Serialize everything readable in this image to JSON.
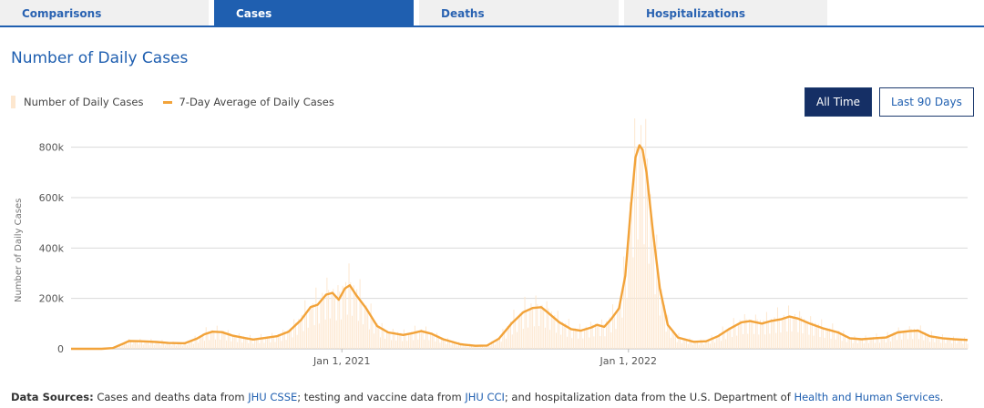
{
  "tabs": [
    {
      "label": "Comparisons",
      "active": false
    },
    {
      "label": "Cases",
      "active": true
    },
    {
      "label": "Deaths",
      "active": false
    },
    {
      "label": "Hospitalizations",
      "active": false
    }
  ],
  "page_title": "Number of Daily Cases",
  "legend": {
    "bars_label": "Number of Daily Cases",
    "line_label": "7-Day Average of Daily Cases"
  },
  "range_buttons": {
    "all_time": "All Time",
    "last_90": "Last 90 Days",
    "selected": "All Time"
  },
  "colors": {
    "accent": "#1f5fb0",
    "line": "#f2a33a",
    "bars": "#fde7cf",
    "active_button": "#152f65"
  },
  "chart_data": {
    "type": "line",
    "ylabel": "Number of Daily Cases",
    "ylim": [
      0,
      900000
    ],
    "yticks": [
      0,
      200000,
      400000,
      600000,
      800000
    ],
    "ytick_labels": [
      "0",
      "200k",
      "400k",
      "600k",
      "800k"
    ],
    "xlim": [
      "2020-01-22",
      "2023-03-09"
    ],
    "xticks": [
      "2021-01-01",
      "2022-01-01"
    ],
    "xtick_labels": [
      "Jan 1, 2021",
      "Jan 1, 2022"
    ],
    "grid": true,
    "legend_position": "top-left",
    "series": [
      {
        "name": "7-Day Average of Daily Cases",
        "style": "line",
        "points": [
          [
            "2020-01-22",
            0
          ],
          [
            "2020-03-01",
            100
          ],
          [
            "2020-03-15",
            3000
          ],
          [
            "2020-03-28",
            20000
          ],
          [
            "2020-04-05",
            31000
          ],
          [
            "2020-04-20",
            30000
          ],
          [
            "2020-05-10",
            27000
          ],
          [
            "2020-05-25",
            23000
          ],
          [
            "2020-06-15",
            22000
          ],
          [
            "2020-06-30",
            40000
          ],
          [
            "2020-07-10",
            58000
          ],
          [
            "2020-07-20",
            68000
          ],
          [
            "2020-08-01",
            66000
          ],
          [
            "2020-08-15",
            52000
          ],
          [
            "2020-09-01",
            42000
          ],
          [
            "2020-09-10",
            37000
          ],
          [
            "2020-09-25",
            43000
          ],
          [
            "2020-10-10",
            50000
          ],
          [
            "2020-10-25",
            68000
          ],
          [
            "2020-11-10",
            115000
          ],
          [
            "2020-11-22",
            165000
          ],
          [
            "2020-12-01",
            175000
          ],
          [
            "2020-12-12",
            215000
          ],
          [
            "2020-12-20",
            222000
          ],
          [
            "2020-12-28",
            195000
          ],
          [
            "2021-01-05",
            240000
          ],
          [
            "2021-01-11",
            252000
          ],
          [
            "2021-01-20",
            210000
          ],
          [
            "2021-02-01",
            160000
          ],
          [
            "2021-02-15",
            90000
          ],
          [
            "2021-03-01",
            65000
          ],
          [
            "2021-03-20",
            55000
          ],
          [
            "2021-04-01",
            62000
          ],
          [
            "2021-04-12",
            70000
          ],
          [
            "2021-04-25",
            60000
          ],
          [
            "2021-05-10",
            38000
          ],
          [
            "2021-06-01",
            18000
          ],
          [
            "2021-06-20",
            12000
          ],
          [
            "2021-07-05",
            13000
          ],
          [
            "2021-07-20",
            40000
          ],
          [
            "2021-08-05",
            100000
          ],
          [
            "2021-08-20",
            145000
          ],
          [
            "2021-09-01",
            162000
          ],
          [
            "2021-09-12",
            165000
          ],
          [
            "2021-09-20",
            145000
          ],
          [
            "2021-10-05",
            105000
          ],
          [
            "2021-10-20",
            78000
          ],
          [
            "2021-11-01",
            72000
          ],
          [
            "2021-11-15",
            85000
          ],
          [
            "2021-11-22",
            95000
          ],
          [
            "2021-12-01",
            87000
          ],
          [
            "2021-12-10",
            118000
          ],
          [
            "2021-12-20",
            160000
          ],
          [
            "2021-12-28",
            290000
          ],
          [
            "2022-01-04",
            560000
          ],
          [
            "2022-01-10",
            760000
          ],
          [
            "2022-01-15",
            808000
          ],
          [
            "2022-01-19",
            790000
          ],
          [
            "2022-01-24",
            700000
          ],
          [
            "2022-02-01",
            470000
          ],
          [
            "2022-02-10",
            240000
          ],
          [
            "2022-02-20",
            95000
          ],
          [
            "2022-03-05",
            45000
          ],
          [
            "2022-03-25",
            28000
          ],
          [
            "2022-04-10",
            30000
          ],
          [
            "2022-04-25",
            50000
          ],
          [
            "2022-05-10",
            80000
          ],
          [
            "2022-05-25",
            105000
          ],
          [
            "2022-06-05",
            110000
          ],
          [
            "2022-06-20",
            100000
          ],
          [
            "2022-07-01",
            110000
          ],
          [
            "2022-07-15",
            118000
          ],
          [
            "2022-07-25",
            128000
          ],
          [
            "2022-08-05",
            120000
          ],
          [
            "2022-08-20",
            100000
          ],
          [
            "2022-09-05",
            82000
          ],
          [
            "2022-09-25",
            65000
          ],
          [
            "2022-10-10",
            42000
          ],
          [
            "2022-10-25",
            38000
          ],
          [
            "2022-11-10",
            42000
          ],
          [
            "2022-11-25",
            45000
          ],
          [
            "2022-12-10",
            65000
          ],
          [
            "2022-12-25",
            70000
          ],
          [
            "2023-01-05",
            72000
          ],
          [
            "2023-01-20",
            50000
          ],
          [
            "2023-02-05",
            42000
          ],
          [
            "2023-02-20",
            38000
          ],
          [
            "2023-03-09",
            35000
          ]
        ]
      },
      {
        "name": "Number of Daily Cases",
        "style": "bars",
        "note": "daily values fluctuate around the 7-day average; peak near 900k in Jan 2022"
      }
    ]
  },
  "sources": {
    "label": "Data Sources:",
    "text1": " Cases and deaths data from ",
    "link1": "JHU CSSE",
    "text2": "; testing and vaccine data from ",
    "link2": "JHU CCI",
    "text3": "; and hospitalization data from the U.S. Department of ",
    "link3": "Health and Human Services",
    "text4": "."
  }
}
